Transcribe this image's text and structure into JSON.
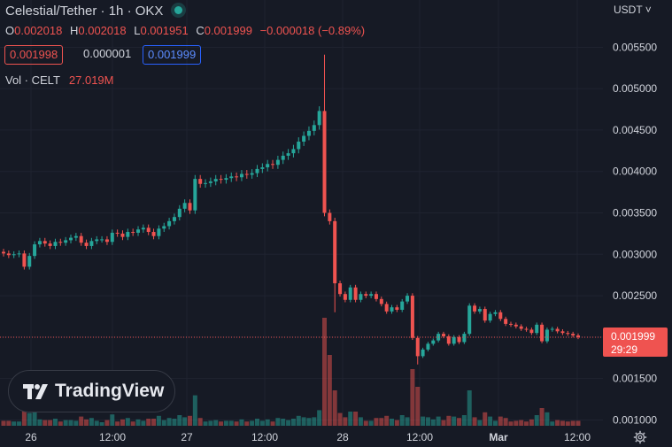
{
  "header": {
    "symbol": "Celestial/Tether",
    "interval": "1h",
    "exchange": "OKX",
    "title": "Celestial/Tether · 1h · OKX"
  },
  "ohlc": {
    "o_label": "O",
    "o": "0.002018",
    "h_label": "H",
    "h": "0.002018",
    "l_label": "L",
    "l": "0.001951",
    "c_label": "C",
    "c": "0.001999",
    "change": "−0.000018 (−0.89%)"
  },
  "quote_boxes": {
    "bid": "0.001998",
    "spread": "0.000001",
    "ask": "0.001999"
  },
  "volume": {
    "label": "Vol · CELT",
    "value": "27.019M"
  },
  "currency_selector": "USDT",
  "price_label": {
    "price": "0.001999",
    "countdown": "29:29"
  },
  "brand": "TradingView",
  "colors": {
    "up": "#26a69a",
    "down": "#ef5350",
    "background": "#161a25",
    "grid": "#1f2330"
  },
  "chart_data": {
    "type": "candlestick",
    "y_ticks": [
      "0.005500",
      "0.005000",
      "0.004500",
      "0.004000",
      "0.003500",
      "0.003000",
      "0.002500",
      "0.002000",
      "0.001500",
      "0.001000"
    ],
    "ylim": [
      0.00093,
      0.00607
    ],
    "x_ticks": [
      "26",
      "12:00",
      "27",
      "12:00",
      "28",
      "12:00",
      "Mar",
      "12:00"
    ],
    "last_price": 0.001999,
    "candles_close": [
      0.00301,
      0.00299,
      0.003,
      0.00301,
      0.00285,
      0.00298,
      0.00312,
      0.00316,
      0.00313,
      0.0031,
      0.00315,
      0.00314,
      0.00317,
      0.0032,
      0.00322,
      0.00314,
      0.0031,
      0.00316,
      0.00318,
      0.00318,
      0.00315,
      0.00326,
      0.00325,
      0.00321,
      0.00327,
      0.00326,
      0.0033,
      0.00332,
      0.00327,
      0.00322,
      0.00331,
      0.00334,
      0.0034,
      0.00345,
      0.00355,
      0.00362,
      0.00353,
      0.00391,
      0.00385,
      0.00386,
      0.00388,
      0.00391,
      0.0039,
      0.00392,
      0.00394,
      0.00393,
      0.00397,
      0.00396,
      0.00398,
      0.00403,
      0.00405,
      0.00409,
      0.00408,
      0.00414,
      0.00419,
      0.00422,
      0.00427,
      0.00436,
      0.00443,
      0.00449,
      0.00456,
      0.00473,
      0.0035,
      0.0034,
      0.00265,
      0.00252,
      0.00245,
      0.0026,
      0.00245,
      0.00252,
      0.0025,
      0.00252,
      0.00246,
      0.0024,
      0.00231,
      0.00236,
      0.00233,
      0.00243,
      0.0025,
      0.00199,
      0.00177,
      0.00185,
      0.00192,
      0.00196,
      0.00204,
      0.00201,
      0.00192,
      0.002,
      0.00194,
      0.00204,
      0.00238,
      0.00231,
      0.00234,
      0.0022,
      0.00228,
      0.0023,
      0.00222,
      0.00216,
      0.00215,
      0.00213,
      0.0021,
      0.00209,
      0.00205,
      0.00215,
      0.00195,
      0.00209,
      0.0021,
      0.00207,
      0.00205,
      0.00204,
      0.00202,
      0.002
    ],
    "volume_ticks": "unlabeled"
  }
}
